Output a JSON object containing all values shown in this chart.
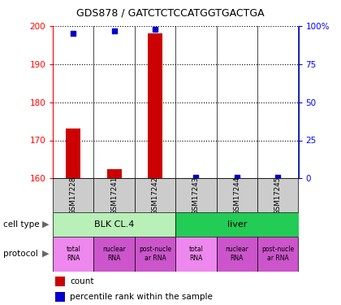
{
  "title": "GDS878 / GATCTCTCCATGGTGACTGA",
  "samples": [
    "GSM17228",
    "GSM17241",
    "GSM17242",
    "GSM17243",
    "GSM17244",
    "GSM17245"
  ],
  "counts": [
    173,
    162.5,
    198,
    160,
    160,
    160
  ],
  "percentiles": [
    95,
    97,
    98,
    0.5,
    0.5,
    0.5
  ],
  "ylim_left": [
    160,
    200
  ],
  "ylim_right": [
    0,
    100
  ],
  "left_ticks": [
    160,
    170,
    180,
    190,
    200
  ],
  "right_ticks": [
    0,
    25,
    50,
    75,
    100
  ],
  "right_tick_labels": [
    "0",
    "25",
    "50",
    "75",
    "100%"
  ],
  "bar_color": "#cc0000",
  "point_color": "#0000cc",
  "bar_width": 0.35,
  "cell_types": [
    {
      "label": "BLK CL.4",
      "start": 0,
      "end": 3,
      "color": "#b8f0b8"
    },
    {
      "label": "liver",
      "start": 3,
      "end": 6,
      "color": "#22cc55"
    }
  ],
  "proto_colors": [
    "#ee88ee",
    "#cc55cc",
    "#cc55cc",
    "#ee88ee",
    "#cc55cc",
    "#cc55cc"
  ],
  "proto_labels": [
    "total\nRNA",
    "nuclear\nRNA",
    "post-nucle\nar RNA",
    "total\nRNA",
    "nuclear\nRNA",
    "post-nucle\nar RNA"
  ],
  "legend_count_color": "#cc0000",
  "legend_pct_color": "#0000cc",
  "sample_box_color": "#cccccc",
  "grid_color": "black",
  "spine_color": "black"
}
